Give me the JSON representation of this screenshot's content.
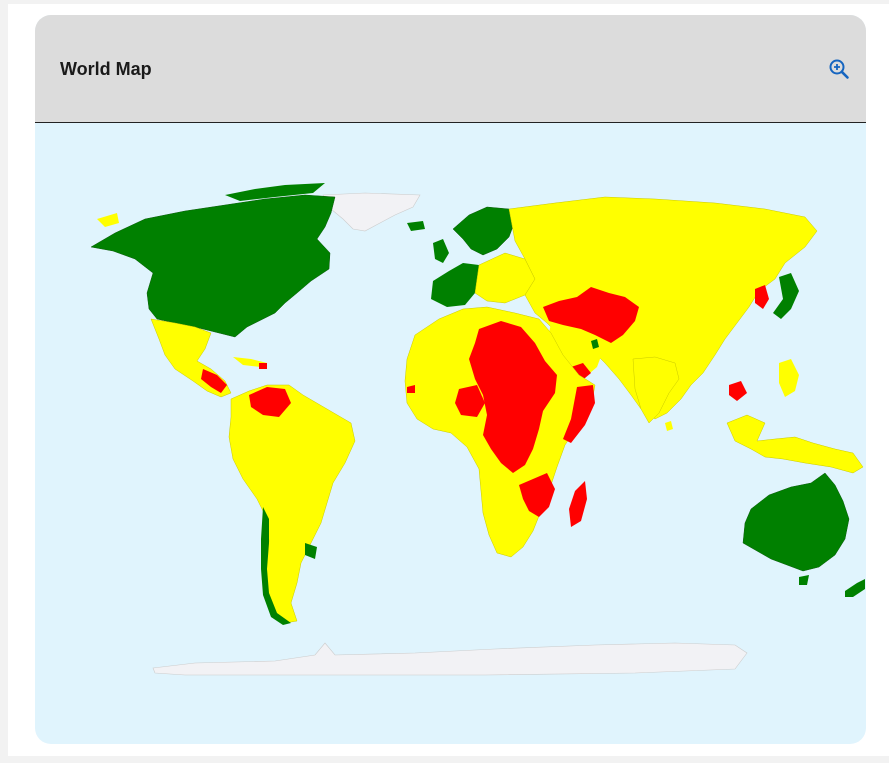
{
  "card": {
    "title": "World Map"
  },
  "icons": {
    "zoom": "zoom-in-icon"
  },
  "colors": {
    "ocean": "#e0f4fd",
    "header": "#dcdcdc",
    "green": "#008000",
    "yellow": "#ffff00",
    "red": "#ff0000",
    "ice": "#f2f2f5",
    "zoom_icon": "#1565c0"
  }
}
